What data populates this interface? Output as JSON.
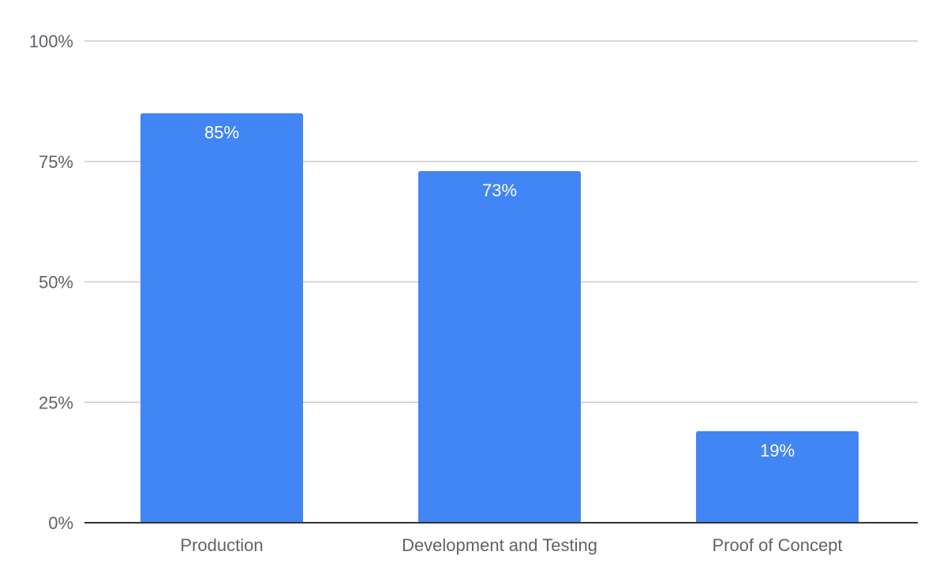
{
  "chart_data": {
    "type": "bar",
    "categories": [
      "Production",
      "Development and Testing",
      "Proof of Concept"
    ],
    "values": [
      85,
      73,
      19
    ],
    "data_labels": [
      "85%",
      "73%",
      "19%"
    ],
    "ylim": [
      0,
      100
    ],
    "yticks": [
      0,
      25,
      50,
      75,
      100
    ],
    "ytick_labels": [
      "0%",
      "25%",
      "50%",
      "75%",
      "100%"
    ],
    "grid": true,
    "legend": "none",
    "colors": {
      "bar": "#4285f4",
      "grid": "#cccccc",
      "axis": "#333333"
    }
  }
}
